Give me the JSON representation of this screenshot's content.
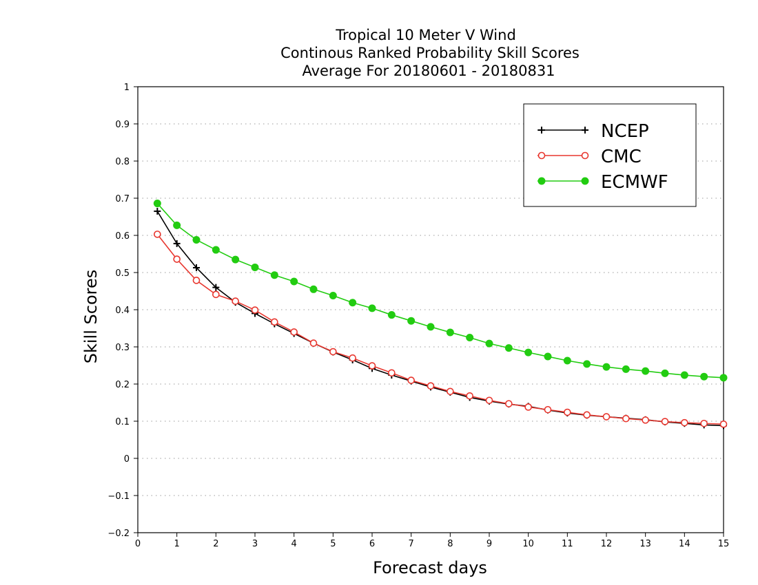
{
  "chart_data": {
    "type": "line",
    "title": [
      "Tropical 10 Meter V Wind",
      "Continous Ranked Probability Skill Scores",
      "Average For 20180601 - 20180831"
    ],
    "xlabel": "Forecast days",
    "ylabel": "Skill Scores",
    "xlim": [
      0,
      15
    ],
    "ylim": [
      -0.2,
      1
    ],
    "xticks": [
      0,
      1,
      2,
      3,
      4,
      5,
      6,
      7,
      8,
      9,
      10,
      11,
      12,
      13,
      14,
      15
    ],
    "xtick_labels": [
      "0",
      "1",
      "2",
      "3",
      "4",
      "5",
      "6",
      "7",
      "8",
      "9",
      "10",
      "11",
      "12",
      "13",
      "14",
      "15"
    ],
    "yticks": [
      -0.2,
      -0.1,
      0,
      0.1,
      0.2,
      0.3,
      0.4,
      0.5,
      0.6,
      0.7,
      0.8,
      0.9,
      1
    ],
    "ytick_labels": [
      "−0.2",
      "−0.1",
      "0",
      "0.1",
      "0.2",
      "0.3",
      "0.4",
      "0.5",
      "0.6",
      "0.7",
      "0.8",
      "0.9",
      "1"
    ],
    "grid": "horizontal dotted",
    "legend_position": "top-right",
    "x": [
      0.5,
      1,
      1.5,
      2,
      2.5,
      3,
      3.5,
      4,
      4.5,
      5,
      5.5,
      6,
      6.5,
      7,
      7.5,
      8,
      8.5,
      9,
      9.5,
      10,
      10.5,
      11,
      11.5,
      12,
      12.5,
      13,
      13.5,
      14,
      14.5,
      15
    ],
    "series": [
      {
        "name": "NCEP",
        "color": "#000000",
        "marker": "plus",
        "values": [
          0.665,
          0.578,
          0.513,
          0.46,
          0.42,
          0.39,
          0.362,
          0.336,
          0.31,
          0.286,
          0.265,
          0.242,
          0.224,
          0.208,
          0.192,
          0.178,
          0.164,
          0.154,
          0.146,
          0.14,
          0.13,
          0.122,
          0.116,
          0.112,
          0.108,
          0.104,
          0.098,
          0.094,
          0.09,
          0.088
        ]
      },
      {
        "name": "CMC",
        "color": "#e8372f",
        "marker": "open-circle",
        "values": [
          0.603,
          0.536,
          0.479,
          0.441,
          0.423,
          0.399,
          0.367,
          0.34,
          0.31,
          0.287,
          0.27,
          0.249,
          0.23,
          0.21,
          0.195,
          0.18,
          0.168,
          0.156,
          0.147,
          0.138,
          0.131,
          0.124,
          0.117,
          0.112,
          0.107,
          0.103,
          0.099,
          0.096,
          0.094,
          0.092
        ]
      },
      {
        "name": "ECMWF",
        "color": "#22cc11",
        "marker": "filled-circle",
        "values": [
          0.686,
          0.627,
          0.588,
          0.561,
          0.535,
          0.514,
          0.493,
          0.476,
          0.455,
          0.438,
          0.419,
          0.404,
          0.386,
          0.37,
          0.354,
          0.339,
          0.325,
          0.309,
          0.297,
          0.285,
          0.274,
          0.263,
          0.254,
          0.246,
          0.24,
          0.235,
          0.229,
          0.224,
          0.22,
          0.217
        ]
      }
    ]
  }
}
